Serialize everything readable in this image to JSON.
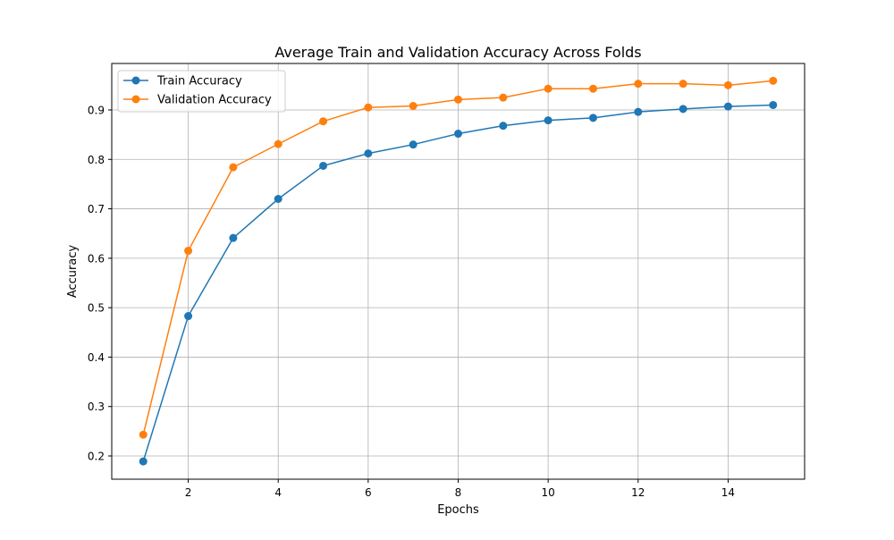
{
  "chart_data": {
    "type": "line",
    "title": "Average Train and Validation Accuracy Across Folds",
    "xlabel": "Epochs",
    "ylabel": "Accuracy",
    "x": [
      1,
      2,
      3,
      4,
      5,
      6,
      7,
      8,
      9,
      10,
      11,
      12,
      13,
      14,
      15
    ],
    "xlim": [
      0.3,
      15.7
    ],
    "ylim": [
      0.153,
      0.994
    ],
    "x_ticks": [
      2,
      4,
      6,
      8,
      10,
      12,
      14
    ],
    "x_tick_labels": [
      "2",
      "4",
      "6",
      "8",
      "10",
      "12",
      "14"
    ],
    "y_ticks": [
      0.2,
      0.3,
      0.4,
      0.5,
      0.6,
      0.7,
      0.8,
      0.9
    ],
    "y_tick_labels": [
      "0.2",
      "0.3",
      "0.4",
      "0.5",
      "0.6",
      "0.7",
      "0.8",
      "0.9"
    ],
    "grid": true,
    "legend_position": "top-left",
    "series": [
      {
        "name": "Train Accuracy",
        "color": "#1f77b4",
        "marker": "circle",
        "values": [
          0.189,
          0.483,
          0.641,
          0.72,
          0.787,
          0.812,
          0.83,
          0.852,
          0.868,
          0.879,
          0.884,
          0.896,
          0.902,
          0.907,
          0.91
        ]
      },
      {
        "name": "Validation Accuracy",
        "color": "#ff7f0e",
        "marker": "circle",
        "values": [
          0.243,
          0.615,
          0.784,
          0.831,
          0.877,
          0.905,
          0.908,
          0.921,
          0.925,
          0.943,
          0.943,
          0.953,
          0.953,
          0.95,
          0.959
        ]
      }
    ]
  }
}
